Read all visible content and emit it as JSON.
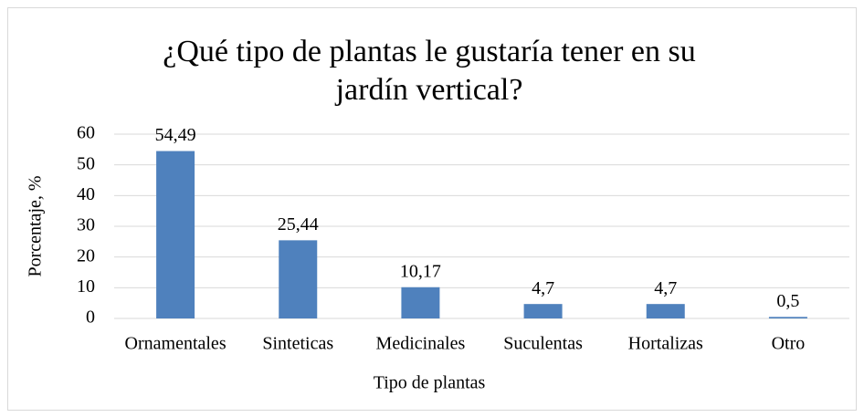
{
  "chart_data": {
    "type": "bar",
    "title": "¿Qué tipo de plantas le gustaría tener en su jardín vertical?",
    "x_label": "Tipo de plantas",
    "y_label": "Porcentaje, %",
    "categories": [
      "Ornamentales",
      "Sinteticas",
      "Medicinales",
      "Suculentas",
      "Hortalizas",
      "Otro"
    ],
    "values": [
      54.49,
      25.44,
      10.17,
      4.7,
      4.7,
      0.5
    ],
    "value_labels": [
      "54,49",
      "25,44",
      "10,17",
      "4,7",
      "4,7",
      "0,5"
    ],
    "color": "#4f81bd",
    "ylim": [
      0,
      60
    ],
    "yticks": [
      0,
      10,
      20,
      30,
      40,
      50,
      60
    ],
    "grid": true
  }
}
